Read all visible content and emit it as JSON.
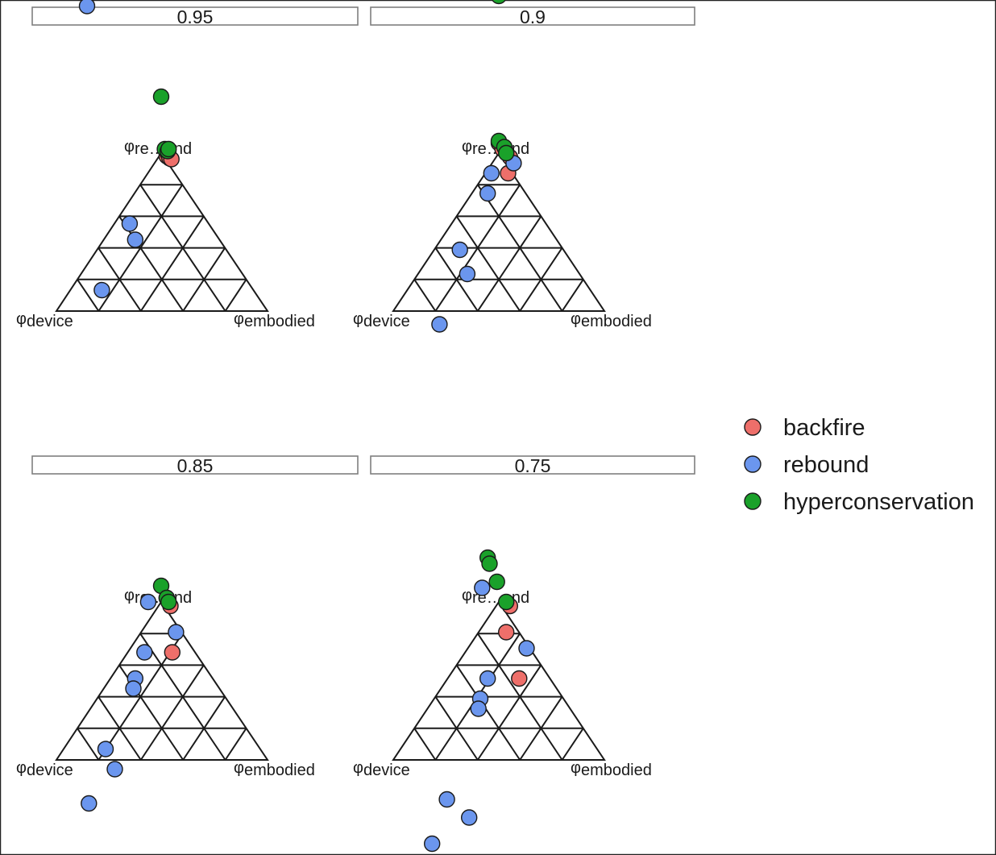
{
  "chart_data": [
    {
      "type": "scatter",
      "panel": "0.95",
      "axes": {
        "top": "re…end",
        "bottom_left": "device",
        "bottom_right": "embodied",
        "prefix": "φ"
      },
      "series": [
        {
          "name": "backfire",
          "values": [
            [
              0.03,
              -0.015
            ],
            [
              0.035,
              0.0
            ],
            [
              0.045,
              -0.025
            ],
            [
              0.055,
              -0.03
            ]
          ]
        },
        {
          "name": "rebound",
          "values": [
            [
              -0.4,
              0.73
            ],
            [
              -0.17,
              -0.35
            ],
            [
              -0.14,
              -0.43
            ],
            [
              -0.32,
              -0.68
            ]
          ]
        },
        {
          "name": "hyperconservation",
          "values": [
            [
              0.0,
              0.28
            ],
            [
              0.02,
              0.02
            ],
            [
              0.035,
              0.01
            ],
            [
              0.04,
              0.02
            ]
          ]
        }
      ]
    },
    {
      "type": "scatter",
      "panel": "0.9",
      "axes": {
        "top": "re…end",
        "bottom_left": "device",
        "bottom_right": "embodied",
        "prefix": "φ"
      },
      "series": [
        {
          "name": "backfire",
          "values": [
            [
              0.0,
              0.05
            ],
            [
              0.02,
              0.02
            ],
            [
              0.06,
              -0.02
            ],
            [
              0.05,
              -0.1
            ]
          ]
        },
        {
          "name": "rebound",
          "values": [
            [
              0.08,
              -0.05
            ],
            [
              -0.04,
              -0.1
            ],
            [
              -0.06,
              -0.2
            ],
            [
              -0.21,
              -0.48
            ],
            [
              -0.17,
              -0.6
            ],
            [
              -0.32,
              -0.85
            ]
          ]
        },
        {
          "name": "hyperconservation",
          "values": [
            [
              0.0,
              0.78
            ],
            [
              0.0,
              0.06
            ],
            [
              0.03,
              0.03
            ],
            [
              0.04,
              0.0
            ]
          ]
        }
      ]
    },
    {
      "type": "scatter",
      "panel": "0.85",
      "axes": {
        "top": "re…end",
        "bottom_left": "device",
        "bottom_right": "embodied",
        "prefix": "φ"
      },
      "series": [
        {
          "name": "backfire",
          "values": [
            [
              0.05,
              -0.02
            ],
            [
              0.06,
              -0.25
            ],
            [
              0.03,
              0.02
            ]
          ]
        },
        {
          "name": "rebound",
          "values": [
            [
              -0.07,
              0.0
            ],
            [
              0.08,
              -0.15
            ],
            [
              -0.09,
              -0.25
            ],
            [
              -0.14,
              -0.38
            ],
            [
              -0.15,
              -0.43
            ],
            [
              -0.3,
              -0.73
            ],
            [
              -0.25,
              -0.83
            ],
            [
              -0.39,
              -1.0
            ]
          ]
        },
        {
          "name": "hyperconservation",
          "values": [
            [
              0.0,
              0.08
            ],
            [
              0.03,
              0.02
            ],
            [
              0.04,
              0.0
            ]
          ]
        }
      ]
    },
    {
      "type": "scatter",
      "panel": "0.75",
      "axes": {
        "top": "re…end",
        "bottom_left": "device",
        "bottom_right": "embodied",
        "prefix": "φ"
      },
      "series": [
        {
          "name": "backfire",
          "values": [
            [
              0.06,
              -0.02
            ],
            [
              0.04,
              -0.15
            ],
            [
              0.11,
              -0.38
            ]
          ]
        },
        {
          "name": "rebound",
          "values": [
            [
              -0.09,
              0.07
            ],
            [
              0.15,
              -0.23
            ],
            [
              -0.06,
              -0.38
            ],
            [
              -0.1,
              -0.48
            ],
            [
              -0.11,
              -0.53
            ],
            [
              -0.28,
              -0.98
            ],
            [
              -0.16,
              -1.07
            ],
            [
              -0.36,
              -1.2
            ]
          ]
        },
        {
          "name": "hyperconservation",
          "values": [
            [
              -0.06,
              0.22
            ],
            [
              -0.05,
              0.19
            ],
            [
              -0.01,
              0.1
            ],
            [
              0.04,
              0.0
            ]
          ]
        }
      ]
    }
  ],
  "legend": {
    "items": [
      {
        "label": "backfire",
        "color": "#ee6f6a"
      },
      {
        "label": "rebound",
        "color": "#6b96ee"
      },
      {
        "label": "hyperconservation",
        "color": "#1aa12a"
      }
    ]
  },
  "colors": {
    "backfire": "#ee6f6a",
    "rebound": "#6b96ee",
    "hyperconservation": "#1aa12a"
  }
}
